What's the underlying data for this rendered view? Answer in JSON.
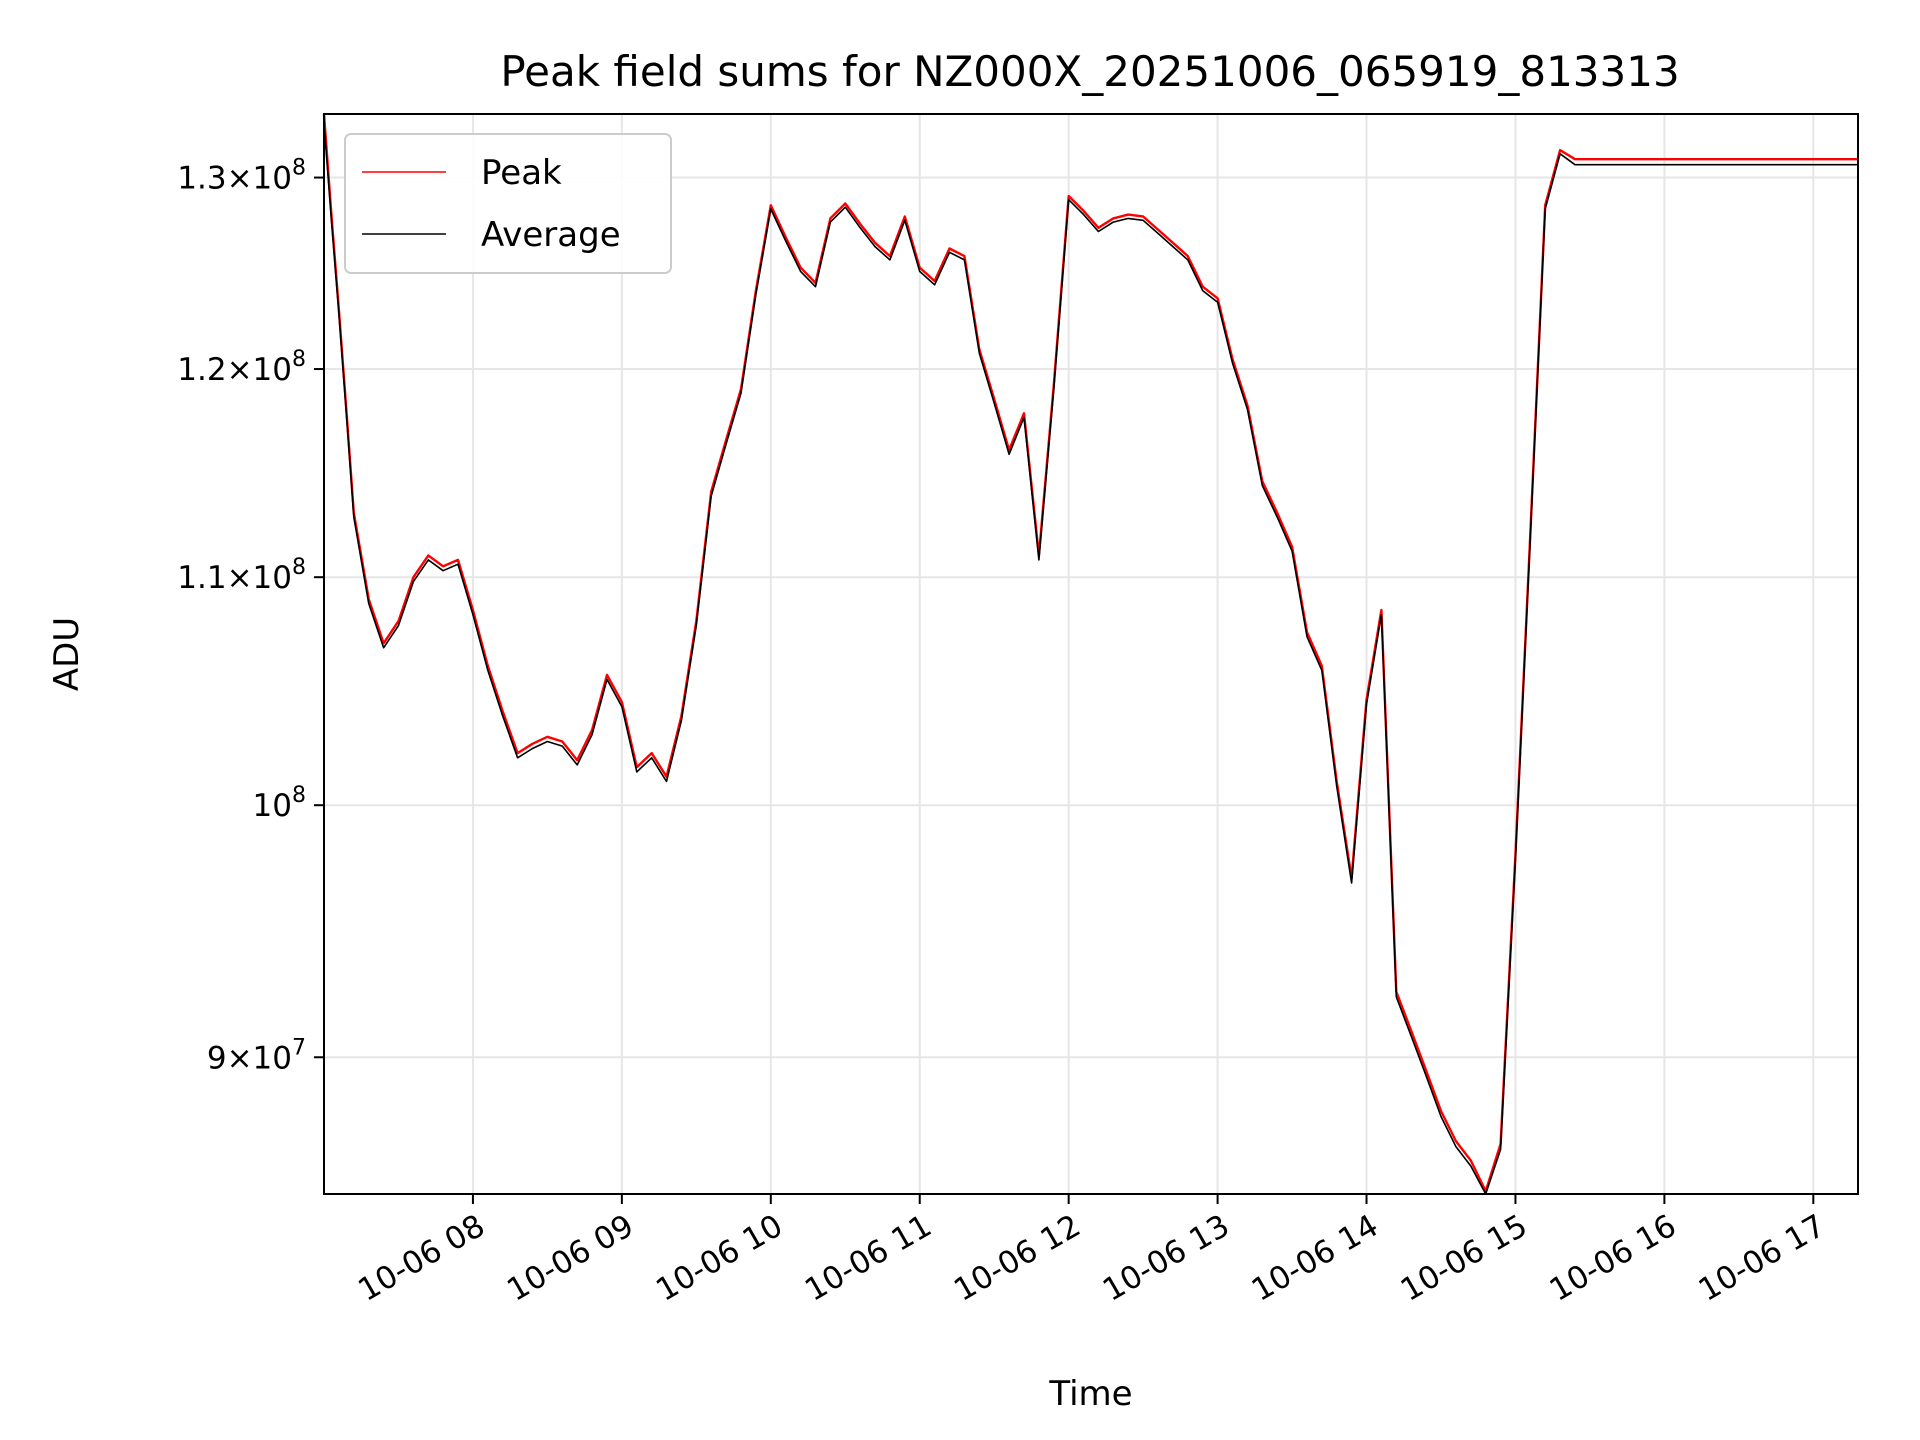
{
  "chart_data": {
    "type": "line",
    "title": "Peak field sums for NZ000X_20251006_065919_813313",
    "xlabel": "Time",
    "ylabel": "ADU",
    "yscale": "log",
    "xlim": [
      7.0,
      17.3
    ],
    "ylim": [
      85000000,
      133500000
    ],
    "grid": true,
    "legend_position": "top-left",
    "x_ticks": [
      {
        "value": 8,
        "label": "10-06 08"
      },
      {
        "value": 9,
        "label": "10-06 09"
      },
      {
        "value": 10,
        "label": "10-06 10"
      },
      {
        "value": 11,
        "label": "10-06 11"
      },
      {
        "value": 12,
        "label": "10-06 12"
      },
      {
        "value": 13,
        "label": "10-06 13"
      },
      {
        "value": 14,
        "label": "10-06 14"
      },
      {
        "value": 15,
        "label": "10-06 15"
      },
      {
        "value": 16,
        "label": "10-06 16"
      },
      {
        "value": 17,
        "label": "10-06 17"
      }
    ],
    "y_ticks": [
      {
        "value": 90000000,
        "mant": "9",
        "exp": "7"
      },
      {
        "value": 100000000,
        "mant": "",
        "exp": "8"
      },
      {
        "value": 110000000,
        "mant": "1.1",
        "exp": "8"
      },
      {
        "value": 120000000,
        "mant": "1.2",
        "exp": "8"
      },
      {
        "value": 130000000,
        "mant": "1.3",
        "exp": "8"
      }
    ],
    "series": [
      {
        "name": "Peak",
        "color": "#ff0000",
        "x": [
          7.0,
          7.05,
          7.1,
          7.15,
          7.2,
          7.3,
          7.4,
          7.5,
          7.6,
          7.7,
          7.8,
          7.9,
          8.0,
          8.1,
          8.2,
          8.3,
          8.4,
          8.5,
          8.6,
          8.7,
          8.8,
          8.9,
          9.0,
          9.1,
          9.2,
          9.3,
          9.4,
          9.5,
          9.6,
          9.7,
          9.8,
          9.9,
          10.0,
          10.1,
          10.2,
          10.3,
          10.4,
          10.5,
          10.6,
          10.7,
          10.8,
          10.9,
          11.0,
          11.1,
          11.2,
          11.3,
          11.4,
          11.5,
          11.6,
          11.7,
          11.8,
          11.9,
          12.0,
          12.1,
          12.2,
          12.3,
          12.4,
          12.5,
          12.6,
          12.7,
          12.8,
          12.9,
          13.0,
          13.1,
          13.2,
          13.3,
          13.4,
          13.5,
          13.6,
          13.7,
          13.8,
          13.9,
          14.0,
          14.1,
          14.2,
          14.3,
          14.4,
          14.5,
          14.6,
          14.7,
          14.8,
          14.9,
          15.0,
          15.1,
          15.2,
          15.3,
          15.4,
          15.5,
          15.6,
          15.7,
          15.8,
          15.9,
          16.0,
          16.1,
          16.2,
          16.3,
          16.4,
          16.5,
          16.6,
          16.7,
          16.8,
          16.9,
          17.0,
          17.1,
          17.2,
          17.3
        ],
        "y": [
          133500000,
          128000000,
          123000000,
          118000000,
          113000000,
          109000000,
          107000000,
          108000000,
          110000000,
          111000000,
          110500000,
          110800000,
          108500000,
          106000000,
          104000000,
          102200000,
          102600000,
          102900000,
          102700000,
          101900000,
          103200000,
          105600000,
          104400000,
          101600000,
          102200000,
          101200000,
          103800000,
          108000000,
          114000000,
          116500000,
          119000000,
          124000000,
          128500000,
          126800000,
          125200000,
          124400000,
          127800000,
          128600000,
          127500000,
          126500000,
          125800000,
          127900000,
          125200000,
          124500000,
          126200000,
          125800000,
          121000000,
          118500000,
          116000000,
          117800000,
          111000000,
          119200000,
          129000000,
          128200000,
          127300000,
          127800000,
          128000000,
          127900000,
          127200000,
          126500000,
          125800000,
          124200000,
          123600000,
          120500000,
          118200000,
          114500000,
          113000000,
          111400000,
          107500000,
          106000000,
          101000000,
          97000000,
          104500000,
          108500000,
          92500000,
          91000000,
          89500000,
          88000000,
          86900000,
          86200000,
          85100000,
          86800000,
          98000000,
          112000000,
          128500000,
          131500000,
          131000000,
          131000000,
          131000000,
          131000000,
          131000000,
          131000000,
          131000000,
          131000000,
          131000000,
          131000000,
          131000000,
          131000000,
          131000000,
          131000000,
          131000000,
          131000000,
          131000000,
          131000000,
          131000000,
          131000000
        ]
      },
      {
        "name": "Average",
        "color": "#000000",
        "x": [
          7.0,
          7.05,
          7.1,
          7.15,
          7.2,
          7.3,
          7.4,
          7.5,
          7.6,
          7.7,
          7.8,
          7.9,
          8.0,
          8.1,
          8.2,
          8.3,
          8.4,
          8.5,
          8.6,
          8.7,
          8.8,
          8.9,
          9.0,
          9.1,
          9.2,
          9.3,
          9.4,
          9.5,
          9.6,
          9.7,
          9.8,
          9.9,
          10.0,
          10.1,
          10.2,
          10.3,
          10.4,
          10.5,
          10.6,
          10.7,
          10.8,
          10.9,
          11.0,
          11.1,
          11.2,
          11.3,
          11.4,
          11.5,
          11.6,
          11.7,
          11.8,
          11.9,
          12.0,
          12.1,
          12.2,
          12.3,
          12.4,
          12.5,
          12.6,
          12.7,
          12.8,
          12.9,
          13.0,
          13.1,
          13.2,
          13.3,
          13.4,
          13.5,
          13.6,
          13.7,
          13.8,
          13.9,
          14.0,
          14.1,
          14.2,
          14.3,
          14.4,
          14.5,
          14.6,
          14.7,
          14.8,
          14.9,
          15.0,
          15.1,
          15.2,
          15.3,
          15.4,
          15.5,
          15.6,
          15.7,
          15.8,
          15.9,
          16.0,
          16.1,
          16.2,
          16.3,
          16.4,
          16.5,
          16.6,
          16.7,
          16.8,
          16.9,
          17.0,
          17.1,
          17.2,
          17.3
        ],
        "y": [
          133000000,
          127700000,
          122800000,
          117800000,
          112800000,
          108800000,
          106800000,
          107800000,
          109800000,
          110800000,
          110300000,
          110600000,
          108300000,
          105800000,
          103800000,
          102000000,
          102400000,
          102700000,
          102500000,
          101700000,
          103000000,
          105400000,
          104200000,
          101400000,
          102000000,
          101000000,
          103600000,
          107800000,
          113800000,
          116300000,
          118800000,
          123800000,
          128300000,
          126600000,
          125000000,
          124200000,
          127600000,
          128400000,
          127300000,
          126300000,
          125600000,
          127700000,
          125000000,
          124300000,
          126000000,
          125600000,
          120800000,
          118300000,
          115800000,
          117600000,
          110800000,
          119000000,
          128800000,
          128000000,
          127100000,
          127600000,
          127800000,
          127700000,
          127000000,
          126300000,
          125600000,
          124000000,
          123400000,
          120300000,
          118000000,
          114300000,
          112800000,
          111200000,
          107300000,
          105800000,
          100800000,
          96800000,
          104300000,
          108300000,
          92300000,
          90800000,
          89300000,
          87800000,
          86700000,
          86000000,
          84950000,
          86600000,
          97800000,
          111800000,
          128300000,
          131300000,
          130700000,
          130700000,
          130700000,
          130700000,
          130700000,
          130700000,
          130700000,
          130700000,
          130700000,
          130700000,
          130700000,
          130700000,
          130700000,
          130700000,
          130700000,
          130700000,
          130700000,
          130700000,
          130700000,
          130700000
        ]
      }
    ]
  }
}
